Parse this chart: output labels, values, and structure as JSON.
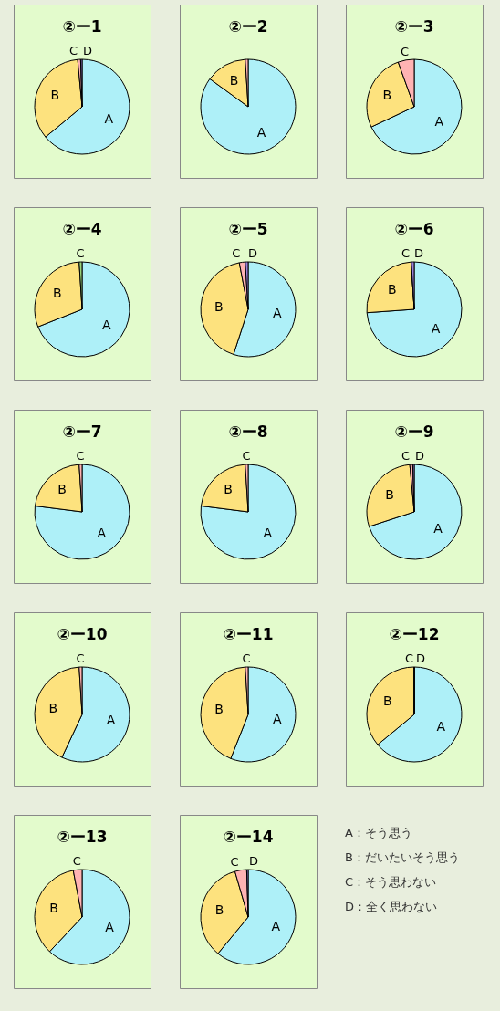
{
  "chart_data": [
    {
      "type": "pie",
      "title": "②ー1",
      "categories": [
        "A",
        "B",
        "C",
        "D"
      ],
      "values": [
        64,
        34.5,
        1,
        0.5
      ],
      "colors": [
        "#aef0f8",
        "#fde27e",
        "#ffb3b3",
        "#9a7fd6"
      ]
    },
    {
      "type": "pie",
      "title": "②ー2",
      "categories": [
        "A",
        "B",
        null
      ],
      "values": [
        85,
        14,
        1
      ],
      "colors": [
        "#aef0f8",
        "#fde27e",
        "#ffb3b3"
      ]
    },
    {
      "type": "pie",
      "title": "②ー3",
      "categories": [
        "A",
        "B",
        "C"
      ],
      "values": [
        68,
        26.5,
        5.5
      ],
      "colors": [
        "#aef0f8",
        "#fde27e",
        "#ffb3b3"
      ]
    },
    {
      "type": "pie",
      "title": "②ー4",
      "categories": [
        "A",
        "B",
        "C"
      ],
      "values": [
        69,
        30,
        1
      ],
      "colors": [
        "#aef0f8",
        "#fde27e",
        "#9ad47a"
      ]
    },
    {
      "type": "pie",
      "title": "②ー5",
      "categories": [
        "A",
        "B",
        "C",
        "D"
      ],
      "values": [
        55,
        42,
        2,
        1
      ],
      "colors": [
        "#aef0f8",
        "#fde27e",
        "#ffb3b3",
        "#9a7fd6"
      ]
    },
    {
      "type": "pie",
      "title": "②ー6",
      "categories": [
        "A",
        "B",
        "C",
        "D"
      ],
      "values": [
        73.5,
        25,
        0,
        1
      ],
      "colors": [
        "#aef0f8",
        "#fde27e",
        "#ffb3b3",
        "#9a7fd6"
      ]
    },
    {
      "type": "pie",
      "title": "②ー7",
      "categories": [
        "A",
        "B",
        "C"
      ],
      "values": [
        77,
        22,
        1
      ],
      "colors": [
        "#aef0f8",
        "#fde27e",
        "#ffb3b3"
      ]
    },
    {
      "type": "pie",
      "title": "②ー8",
      "categories": [
        "A",
        "B",
        "C"
      ],
      "values": [
        77,
        22,
        1
      ],
      "colors": [
        "#aef0f8",
        "#fde27e",
        "#ffb3b3"
      ]
    },
    {
      "type": "pie",
      "title": "②ー9",
      "categories": [
        "A",
        "B",
        "C",
        "D"
      ],
      "values": [
        70,
        28.5,
        1,
        0.5
      ],
      "colors": [
        "#aef0f8",
        "#fde27e",
        "#ffb3b3",
        "#9a7fd6"
      ]
    },
    {
      "type": "pie",
      "title": "②ー10",
      "categories": [
        "A",
        "B",
        "C"
      ],
      "values": [
        57,
        42,
        1
      ],
      "colors": [
        "#aef0f8",
        "#fde27e",
        "#ffb3b3"
      ]
    },
    {
      "type": "pie",
      "title": "②ー11",
      "categories": [
        "A",
        "B",
        "C"
      ],
      "values": [
        56,
        43,
        1
      ],
      "colors": [
        "#aef0f8",
        "#fde27e",
        "#ffb3b3"
      ]
    },
    {
      "type": "pie",
      "title": "②ー12",
      "categories": [
        "A",
        "B",
        "C",
        "D"
      ],
      "values": [
        64,
        36,
        0,
        0
      ],
      "colors": [
        "#aef0f8",
        "#fde27e",
        "#ffb3b3",
        "#9a7fd6"
      ]
    },
    {
      "type": "pie",
      "title": "②ー13",
      "categories": [
        "A",
        "B",
        "C"
      ],
      "values": [
        62,
        35,
        3
      ],
      "colors": [
        "#aef0f8",
        "#fde27e",
        "#ffb3b3"
      ]
    },
    {
      "type": "pie",
      "title": "②ー14",
      "categories": [
        "A",
        "B",
        "C",
        "D"
      ],
      "values": [
        61,
        34.5,
        4,
        0.5
      ],
      "colors": [
        "#aef0f8",
        "#fde27e",
        "#ffb3b3",
        "#9a7fd6"
      ]
    },
    {
      "type": "other",
      "annotations": [
        "A：そう思う",
        "B：だいたいそう思う",
        "C：そう思わない",
        "D：全く思わない"
      ]
    }
  ]
}
